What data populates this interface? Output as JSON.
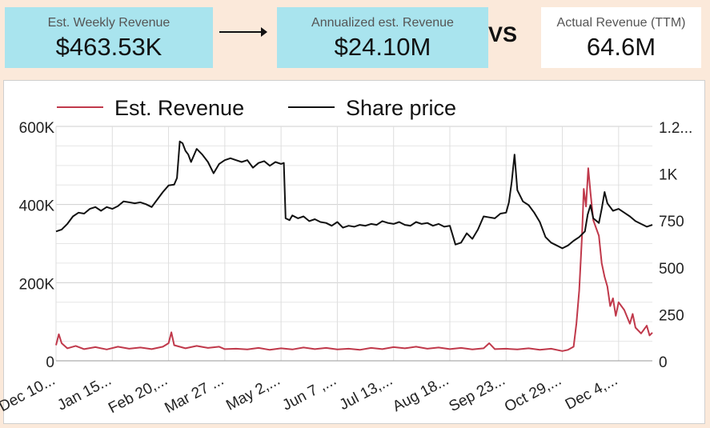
{
  "kpis": {
    "weekly": {
      "label": "Est. Weekly Revenue",
      "value": "$463.53K"
    },
    "annualized": {
      "label": "Annualized est. Revenue",
      "value": "$24.10M"
    },
    "vs": "VS",
    "actual": {
      "label": "Actual Revenue (TTM)",
      "value": "64.6M"
    }
  },
  "colors": {
    "revenue": "#c0394b",
    "share_price": "#111111",
    "kpi_bg": "#a9e4ee",
    "page_bg": "#fbe9da"
  },
  "chart_data": {
    "type": "line",
    "legend_position": "top",
    "grid": true,
    "x": {
      "ticks": [
        "Dec 10...",
        "Jan 15...",
        "Feb 20,...",
        "Mar 27 ...",
        "May 2,...",
        "Jun 7 ,...",
        "Jul 13,...",
        "Aug 18...",
        "Sep 23...",
        "Oct 29,...",
        "Dec 4,..."
      ],
      "range": [
        0,
        10.6
      ]
    },
    "y_left": {
      "ticks": [
        "0",
        "200K",
        "400K",
        "600K"
      ],
      "range": [
        0,
        600000
      ]
    },
    "y_right": {
      "ticks": [
        "0",
        "250",
        "500",
        "750",
        "1K",
        "1.2..."
      ],
      "range": [
        0,
        1250
      ]
    },
    "series": [
      {
        "name": "Est. Revenue",
        "axis": "left",
        "points": [
          [
            0,
            40000
          ],
          [
            0.05,
            68000
          ],
          [
            0.1,
            45000
          ],
          [
            0.2,
            32000
          ],
          [
            0.35,
            38000
          ],
          [
            0.5,
            30000
          ],
          [
            0.7,
            35000
          ],
          [
            0.9,
            29000
          ],
          [
            1.1,
            36000
          ],
          [
            1.3,
            31000
          ],
          [
            1.5,
            34000
          ],
          [
            1.7,
            30000
          ],
          [
            1.9,
            36000
          ],
          [
            2.0,
            45000
          ],
          [
            2.05,
            73000
          ],
          [
            2.1,
            40000
          ],
          [
            2.3,
            32000
          ],
          [
            2.5,
            38000
          ],
          [
            2.7,
            33000
          ],
          [
            2.9,
            36000
          ],
          [
            3.0,
            30000
          ],
          [
            3.2,
            31000
          ],
          [
            3.4,
            29000
          ],
          [
            3.6,
            33000
          ],
          [
            3.8,
            28000
          ],
          [
            4.0,
            32000
          ],
          [
            4.2,
            29000
          ],
          [
            4.4,
            34000
          ],
          [
            4.6,
            30000
          ],
          [
            4.8,
            33000
          ],
          [
            5.0,
            29000
          ],
          [
            5.2,
            31000
          ],
          [
            5.4,
            28000
          ],
          [
            5.6,
            33000
          ],
          [
            5.8,
            30000
          ],
          [
            6.0,
            35000
          ],
          [
            6.2,
            32000
          ],
          [
            6.4,
            36000
          ],
          [
            6.6,
            31000
          ],
          [
            6.8,
            34000
          ],
          [
            7.0,
            30000
          ],
          [
            7.2,
            33000
          ],
          [
            7.4,
            29000
          ],
          [
            7.6,
            32000
          ],
          [
            7.7,
            45000
          ],
          [
            7.8,
            30000
          ],
          [
            8.0,
            31000
          ],
          [
            8.2,
            29000
          ],
          [
            8.4,
            32000
          ],
          [
            8.6,
            28000
          ],
          [
            8.8,
            31000
          ],
          [
            9.0,
            25000
          ],
          [
            9.1,
            28000
          ],
          [
            9.2,
            36000
          ],
          [
            9.25,
            95000
          ],
          [
            9.3,
            180000
          ],
          [
            9.35,
            320000
          ],
          [
            9.38,
            440000
          ],
          [
            9.42,
            395000
          ],
          [
            9.46,
            493000
          ],
          [
            9.5,
            430000
          ],
          [
            9.55,
            360000
          ],
          [
            9.6,
            340000
          ],
          [
            9.65,
            320000
          ],
          [
            9.7,
            250000
          ],
          [
            9.75,
            215000
          ],
          [
            9.8,
            190000
          ],
          [
            9.85,
            140000
          ],
          [
            9.9,
            160000
          ],
          [
            9.95,
            115000
          ],
          [
            10.0,
            150000
          ],
          [
            10.1,
            130000
          ],
          [
            10.2,
            95000
          ],
          [
            10.25,
            120000
          ],
          [
            10.3,
            85000
          ],
          [
            10.4,
            70000
          ],
          [
            10.5,
            90000
          ],
          [
            10.55,
            65000
          ],
          [
            10.6,
            72000
          ]
        ]
      },
      {
        "name": "Share price",
        "axis": "right",
        "points": [
          [
            0,
            690
          ],
          [
            0.1,
            700
          ],
          [
            0.2,
            730
          ],
          [
            0.3,
            770
          ],
          [
            0.4,
            790
          ],
          [
            0.5,
            785
          ],
          [
            0.6,
            810
          ],
          [
            0.7,
            820
          ],
          [
            0.8,
            800
          ],
          [
            0.9,
            820
          ],
          [
            1.0,
            810
          ],
          [
            1.1,
            825
          ],
          [
            1.2,
            850
          ],
          [
            1.3,
            845
          ],
          [
            1.4,
            840
          ],
          [
            1.5,
            845
          ],
          [
            1.6,
            835
          ],
          [
            1.7,
            820
          ],
          [
            1.8,
            860
          ],
          [
            1.9,
            900
          ],
          [
            2.0,
            935
          ],
          [
            2.1,
            940
          ],
          [
            2.15,
            975
          ],
          [
            2.2,
            1170
          ],
          [
            2.25,
            1160
          ],
          [
            2.3,
            1120
          ],
          [
            2.35,
            1100
          ],
          [
            2.4,
            1060
          ],
          [
            2.5,
            1130
          ],
          [
            2.6,
            1100
          ],
          [
            2.7,
            1060
          ],
          [
            2.8,
            1000
          ],
          [
            2.9,
            1050
          ],
          [
            3.0,
            1070
          ],
          [
            3.1,
            1080
          ],
          [
            3.2,
            1070
          ],
          [
            3.3,
            1060
          ],
          [
            3.4,
            1070
          ],
          [
            3.5,
            1030
          ],
          [
            3.6,
            1055
          ],
          [
            3.7,
            1065
          ],
          [
            3.8,
            1040
          ],
          [
            3.9,
            1060
          ],
          [
            4.0,
            1050
          ],
          [
            4.05,
            1055
          ],
          [
            4.08,
            760
          ],
          [
            4.15,
            750
          ],
          [
            4.2,
            775
          ],
          [
            4.3,
            760
          ],
          [
            4.4,
            770
          ],
          [
            4.5,
            745
          ],
          [
            4.6,
            755
          ],
          [
            4.7,
            740
          ],
          [
            4.8,
            735
          ],
          [
            4.9,
            720
          ],
          [
            5.0,
            740
          ],
          [
            5.1,
            710
          ],
          [
            5.2,
            720
          ],
          [
            5.3,
            715
          ],
          [
            5.4,
            725
          ],
          [
            5.5,
            720
          ],
          [
            5.6,
            730
          ],
          [
            5.7,
            725
          ],
          [
            5.8,
            745
          ],
          [
            5.9,
            735
          ],
          [
            6.0,
            730
          ],
          [
            6.1,
            740
          ],
          [
            6.2,
            725
          ],
          [
            6.3,
            720
          ],
          [
            6.4,
            740
          ],
          [
            6.5,
            730
          ],
          [
            6.6,
            735
          ],
          [
            6.7,
            720
          ],
          [
            6.8,
            730
          ],
          [
            6.9,
            715
          ],
          [
            7.0,
            720
          ],
          [
            7.1,
            620
          ],
          [
            7.2,
            630
          ],
          [
            7.3,
            680
          ],
          [
            7.4,
            650
          ],
          [
            7.5,
            700
          ],
          [
            7.6,
            770
          ],
          [
            7.7,
            765
          ],
          [
            7.8,
            760
          ],
          [
            7.9,
            785
          ],
          [
            8.0,
            790
          ],
          [
            8.05,
            845
          ],
          [
            8.1,
            955
          ],
          [
            8.15,
            1100
          ],
          [
            8.2,
            910
          ],
          [
            8.3,
            850
          ],
          [
            8.4,
            830
          ],
          [
            8.5,
            790
          ],
          [
            8.6,
            740
          ],
          [
            8.7,
            660
          ],
          [
            8.8,
            630
          ],
          [
            8.9,
            615
          ],
          [
            9.0,
            600
          ],
          [
            9.1,
            615
          ],
          [
            9.2,
            640
          ],
          [
            9.3,
            660
          ],
          [
            9.4,
            690
          ],
          [
            9.45,
            780
          ],
          [
            9.5,
            830
          ],
          [
            9.55,
            760
          ],
          [
            9.65,
            735
          ],
          [
            9.7,
            810
          ],
          [
            9.75,
            900
          ],
          [
            9.8,
            840
          ],
          [
            9.9,
            800
          ],
          [
            10.0,
            810
          ],
          [
            10.1,
            790
          ],
          [
            10.2,
            770
          ],
          [
            10.3,
            745
          ],
          [
            10.4,
            730
          ],
          [
            10.5,
            715
          ],
          [
            10.6,
            725
          ]
        ]
      }
    ]
  }
}
